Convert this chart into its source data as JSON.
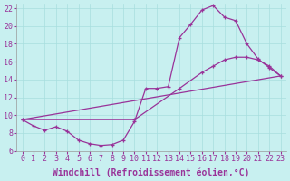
{
  "xlabel": "Windchill (Refroidissement éolien,°C)",
  "bg_color": "#c8f0f0",
  "line_color": "#993399",
  "xlim": [
    -0.5,
    23.5
  ],
  "ylim": [
    6,
    22.5
  ],
  "xticks": [
    0,
    1,
    2,
    3,
    4,
    5,
    6,
    7,
    8,
    9,
    10,
    11,
    12,
    13,
    14,
    15,
    16,
    17,
    18,
    19,
    20,
    21,
    22,
    23
  ],
  "yticks": [
    6,
    8,
    10,
    12,
    14,
    16,
    18,
    20,
    22
  ],
  "curve1_x": [
    0,
    1,
    2,
    3,
    4,
    5,
    6,
    7,
    8,
    9,
    10,
    11,
    12,
    13,
    14,
    15,
    16,
    17,
    18,
    19,
    20,
    21,
    22,
    23
  ],
  "curve1_y": [
    9.5,
    8.8,
    8.3,
    8.7,
    8.2,
    7.2,
    6.8,
    6.6,
    6.7,
    7.2,
    9.3,
    13.0,
    13.0,
    13.2,
    18.7,
    20.2,
    21.8,
    22.3,
    21.0,
    20.6,
    18.0,
    16.3,
    15.3,
    14.4
  ],
  "curve2_x": [
    0,
    10,
    14,
    16,
    17,
    18,
    19,
    20,
    21,
    22,
    23
  ],
  "curve2_y": [
    9.5,
    9.5,
    13.0,
    14.8,
    15.5,
    16.2,
    16.5,
    16.5,
    16.2,
    15.5,
    14.4
  ],
  "curve3_x": [
    0,
    23
  ],
  "curve3_y": [
    9.5,
    14.4
  ],
  "grid_color": "#a8dede",
  "tick_fontsize": 6,
  "label_fontsize": 7
}
